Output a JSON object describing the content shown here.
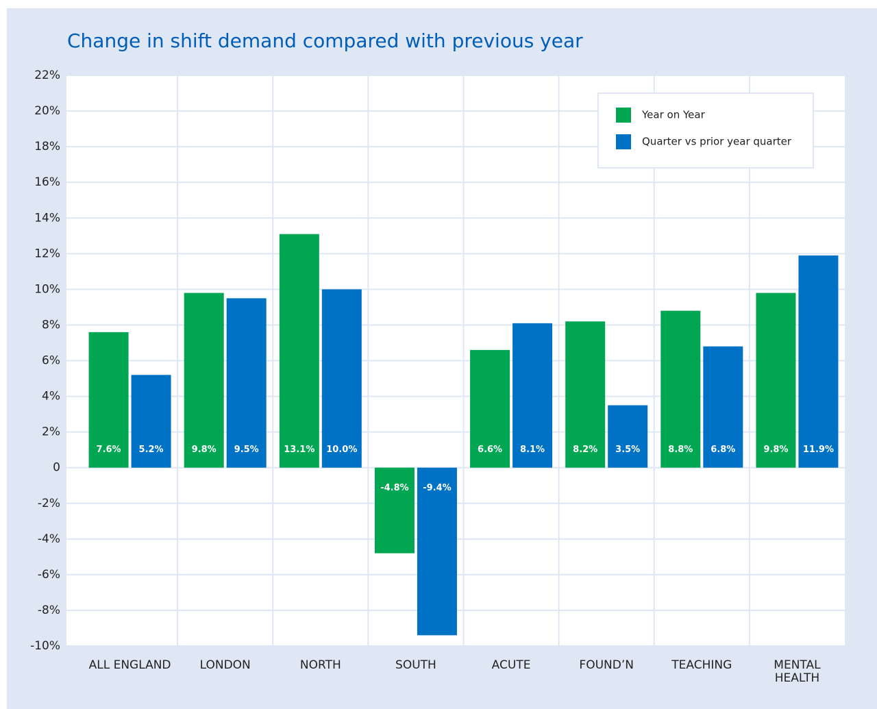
{
  "chart_data": {
    "type": "bar",
    "title": "Change in shift demand compared with previous year",
    "categories": [
      "ALL ENGLAND",
      "LONDON",
      "NORTH",
      "SOUTH",
      "ACUTE",
      "FOUND’N",
      "TEACHING",
      "MENTAL\nHEALTH"
    ],
    "series": [
      {
        "name": "Year on Year",
        "color": "#00a651",
        "values": [
          7.6,
          9.8,
          13.1,
          -4.8,
          6.6,
          8.2,
          8.8,
          9.8
        ],
        "value_labels": [
          "7.6%",
          "9.8%",
          "13.1%",
          "-4.8%",
          "6.6%",
          "8.2%",
          "8.8%",
          "9.8%"
        ]
      },
      {
        "name": "Quarter vs prior year quarter",
        "color": "#0072c6",
        "values": [
          5.2,
          9.5,
          10.0,
          -9.4,
          8.1,
          3.5,
          6.8,
          11.9
        ],
        "value_labels": [
          "5.2%",
          "9.5%",
          "10.0%",
          "-9.4%",
          "8.1%",
          "3.5%",
          "6.8%",
          "11.9%"
        ]
      }
    ],
    "ylim": [
      -10,
      22
    ],
    "yticks": [
      {
        "value": -10,
        "label": "-10%"
      },
      {
        "value": -8,
        "label": "-8%"
      },
      {
        "value": -6,
        "label": "-6%"
      },
      {
        "value": -4,
        "label": "-4%"
      },
      {
        "value": -2,
        "label": "-2%"
      },
      0,
      {
        "value": 2,
        "label": "2%"
      },
      {
        "value": 4,
        "label": "4%"
      },
      {
        "value": 6,
        "label": "6%"
      },
      {
        "value": 8,
        "label": "8%"
      },
      {
        "value": 10,
        "label": "10%"
      },
      {
        "value": 12,
        "label": "12%"
      },
      {
        "value": 14,
        "label": "14%"
      },
      {
        "value": 16,
        "label": "16%"
      },
      {
        "value": 18,
        "label": "18%"
      },
      {
        "value": 20,
        "label": "20%"
      },
      {
        "value": 22,
        "label": "22%"
      }
    ],
    "grid": true,
    "legend": "top-right"
  }
}
